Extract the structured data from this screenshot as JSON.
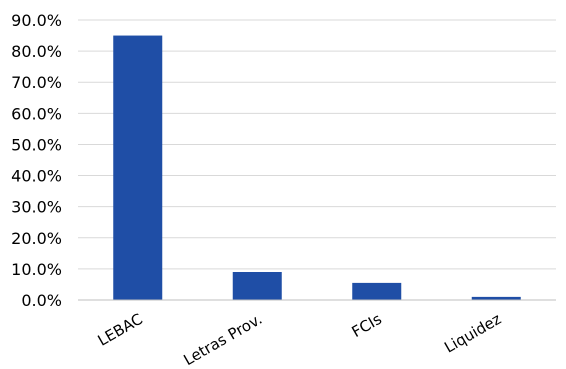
{
  "chart_data": {
    "type": "bar",
    "title": "",
    "xlabel": "",
    "ylabel": "",
    "categories": [
      "LEBAC",
      "Letras Prov.",
      "FCIs",
      "Liquidez"
    ],
    "values": [
      85.0,
      9.0,
      5.5,
      1.0
    ],
    "ylim": [
      0,
      90
    ],
    "ytick_values": [
      0,
      10,
      20,
      30,
      40,
      50,
      60,
      70,
      80,
      90
    ],
    "yticks": [
      "0.0%",
      "10.0%",
      "20.0%",
      "30.0%",
      "40.0%",
      "50.0%",
      "60.0%",
      "70.0%",
      "80.0%",
      "90.0%"
    ],
    "grid": true,
    "legend": "none",
    "colors": {
      "bar": "#1f4ea6",
      "grid": "#d9d9d9",
      "axis": "#bfbfbf",
      "text": "#000000"
    }
  }
}
